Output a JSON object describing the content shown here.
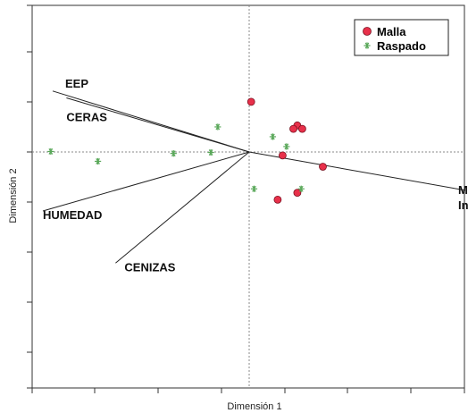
{
  "chart_data": {
    "type": "scatter",
    "subtype": "biplot",
    "xlabel": "Dimensión 1",
    "ylabel": "Dimensión 2",
    "xlim": [
      -1.0,
      1.1
    ],
    "ylim": [
      -1.35,
      1.2
    ],
    "reference_lines": {
      "x": 0,
      "y": 0,
      "style": "dotted"
    },
    "tick_labels_shown": false,
    "grid": false,
    "legend_position": "top-right",
    "series": [
      {
        "name": "Malla",
        "marker": "circle",
        "color": "#e8304a",
        "points": [
          {
            "x": 0.01,
            "y": 0.51
          },
          {
            "x": 0.245,
            "y": 0.27
          },
          {
            "x": 0.225,
            "y": 0.235
          },
          {
            "x": 0.27,
            "y": 0.235
          },
          {
            "x": 0.17,
            "y": -0.035
          },
          {
            "x": 0.375,
            "y": -0.15
          },
          {
            "x": 0.245,
            "y": -0.415
          },
          {
            "x": 0.145,
            "y": -0.485
          }
        ]
      },
      {
        "name": "Raspado",
        "marker": "asterisk",
        "color": "#5aa85a",
        "points": [
          {
            "x": -0.16,
            "y": 0.255
          },
          {
            "x": 0.12,
            "y": 0.155
          },
          {
            "x": 0.19,
            "y": 0.055
          },
          {
            "x": -1.01,
            "y": 0.005
          },
          {
            "x": -0.385,
            "y": -0.015
          },
          {
            "x": -0.195,
            "y": -0.005
          },
          {
            "x": -0.77,
            "y": -0.095
          },
          {
            "x": 0.025,
            "y": -0.375
          },
          {
            "x": 0.265,
            "y": -0.375
          }
        ]
      }
    ],
    "vectors": [
      {
        "label": "EEP",
        "x": -1.0,
        "y": 0.62
      },
      {
        "label": "CERAS",
        "x": -0.93,
        "y": 0.55
      },
      {
        "label": "HUMEDAD",
        "x": -1.05,
        "y": -0.6
      },
      {
        "label": "CENIZAS",
        "x": -0.68,
        "y": -1.13
      },
      {
        "label": "Materiales\nInsolubles",
        "x": 1.1,
        "y": -0.39
      }
    ]
  }
}
